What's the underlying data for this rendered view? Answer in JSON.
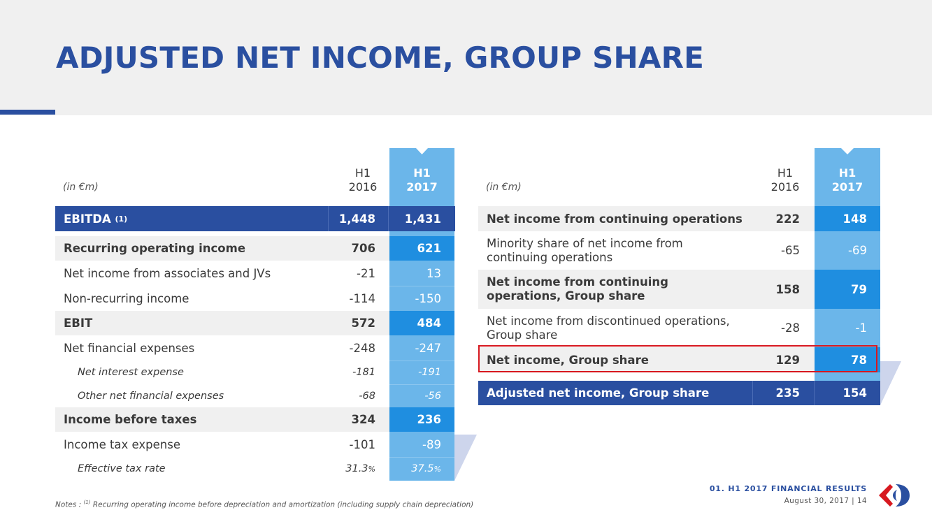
{
  "title": "ADJUSTED NET INCOME, GROUP SHARE",
  "left_table": {
    "unit": "(in €m)",
    "col_2016": [
      "H1",
      "2016"
    ],
    "col_2017": [
      "H1",
      "2017"
    ],
    "ebitda": {
      "label": "EBITDA",
      "sup": "(1)",
      "v2016": "1,448",
      "v2017": "1,431"
    },
    "rows": [
      {
        "label": "Recurring operating income",
        "v2016": "706",
        "v2017": "621"
      },
      {
        "label": "Net income from associates and JVs",
        "v2016": "-21",
        "v2017": "13"
      },
      {
        "label": "Non-recurring income",
        "v2016": "-114",
        "v2017": "-150"
      },
      {
        "label": "EBIT",
        "v2016": "572",
        "v2017": "484"
      },
      {
        "label": "Net financial expenses",
        "v2016": "-248",
        "v2017": "-247"
      },
      {
        "label": "Net interest expense",
        "v2016": "-181",
        "v2017": "-191"
      },
      {
        "label": "Other net financial expenses",
        "v2016": "-68",
        "v2017": "-56"
      },
      {
        "label": "Income before taxes",
        "v2016": "324",
        "v2017": "236"
      },
      {
        "label": "Income tax expense",
        "v2016": "-101",
        "v2017": "-89"
      },
      {
        "label": "Effective tax rate",
        "v2016": "31.3",
        "v2016_unit": "%",
        "v2017": "37.5",
        "v2017_unit": "%"
      }
    ]
  },
  "right_table": {
    "unit": "(in €m)",
    "col_2016": [
      "H1",
      "2016"
    ],
    "col_2017": [
      "H1",
      "2017"
    ],
    "rows": [
      {
        "label": "Net income from continuing operations",
        "v2016": "222",
        "v2017": "148"
      },
      {
        "label_line1": "Minority share of net income from",
        "label_line2": "continuing operations",
        "v2016": "-65",
        "v2017": "-69"
      },
      {
        "label_line1": "Net income from continuing",
        "label_line2": "operations, Group share",
        "v2016": "158",
        "v2017": "79"
      },
      {
        "label_line1": "Net income from discontinued operations,",
        "label_line2": "Group share",
        "v2016": "-28",
        "v2017": "-1"
      },
      {
        "label": "Net income, Group share",
        "v2016": "129",
        "v2017": "78"
      },
      {
        "label": "Adjusted net income, Group share",
        "v2016": "235",
        "v2017": "154"
      }
    ]
  },
  "note": {
    "prefix": "Notes :",
    "sup": "(1)",
    "text": "Recurring operating income before depreciation and amortization (including supply chain depreciation)"
  },
  "footer": {
    "section": "01. H1 2017 FINANCIAL RESULTS",
    "date": "August 30, 2017 | 14"
  },
  "colors": {
    "navy": "#2a4fa0",
    "light_blue": "#6bb6ea",
    "mid_blue": "#1f8ee0",
    "grey": "#f0f0f0",
    "highlight": "#d7181f",
    "logo_red": "#d7181f",
    "logo_blue": "#2a4fa0"
  }
}
